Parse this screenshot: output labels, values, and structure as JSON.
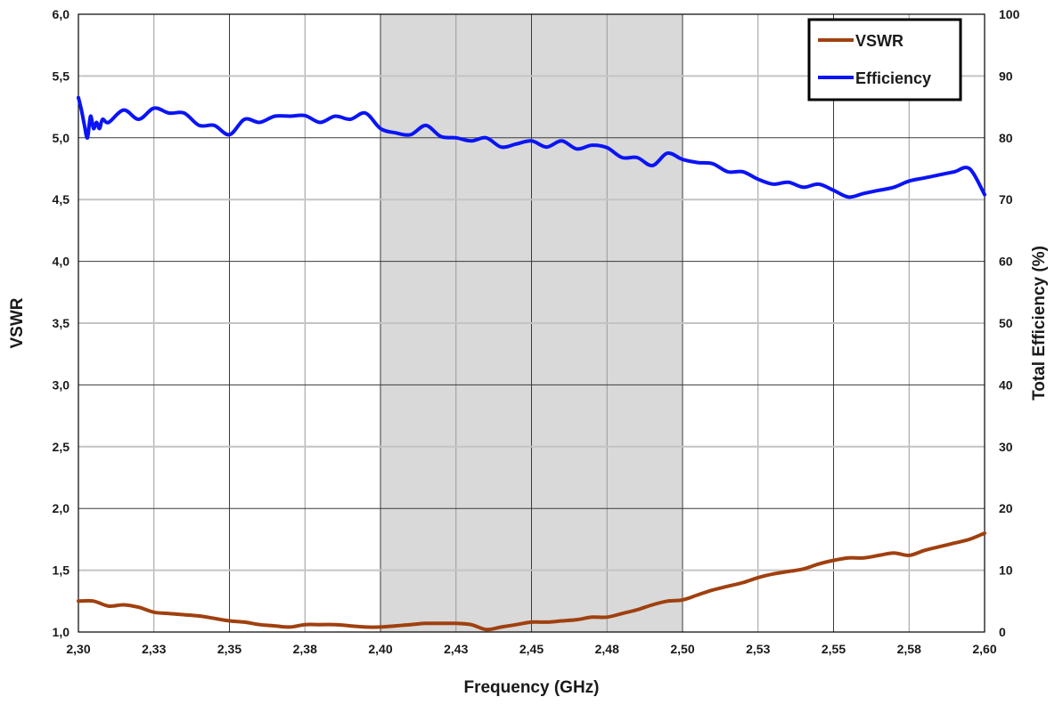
{
  "chart_data": {
    "type": "line",
    "title": "",
    "xlabel": "Frequency (GHz)",
    "ylabel": "VSWR",
    "y2label": "Total Efficiency (%)",
    "xlim": [
      2.3,
      2.6
    ],
    "ylim": [
      1.0,
      6.0
    ],
    "y2lim": [
      0,
      100
    ],
    "x_ticks": [
      2.3,
      2.325,
      2.35,
      2.375,
      2.4,
      2.425,
      2.45,
      2.475,
      2.5,
      2.525,
      2.55,
      2.575,
      2.6
    ],
    "x_tick_labels": [
      "2,30",
      "2,33",
      "2,35",
      "2,38",
      "2,40",
      "2,43",
      "2,45",
      "2,48",
      "2,50",
      "2,53",
      "2,55",
      "2,58",
      "2,60"
    ],
    "y_ticks": [
      1.0,
      1.5,
      2.0,
      2.5,
      3.0,
      3.5,
      4.0,
      4.5,
      5.0,
      5.5,
      6.0
    ],
    "y_tick_labels": [
      "1,0",
      "1,5",
      "2,0",
      "2,5",
      "3,0",
      "3,5",
      "4,0",
      "4,5",
      "5,0",
      "5,5",
      "6,0"
    ],
    "y2_ticks": [
      0,
      10,
      20,
      30,
      40,
      50,
      60,
      70,
      80,
      90,
      100
    ],
    "y2_tick_labels": [
      "0",
      "10",
      "20",
      "30",
      "40",
      "50",
      "60",
      "70",
      "80",
      "90",
      "100"
    ],
    "grid": true,
    "shaded_band": {
      "x_start": 2.4,
      "x_end": 2.5,
      "color": "#d9d9d9"
    },
    "legend": {
      "position": "top-right",
      "entries": [
        "VSWR",
        "Efficiency"
      ]
    },
    "series": [
      {
        "name": "VSWR",
        "axis": "left",
        "color": "#a0400f",
        "x": [
          2.3,
          2.305,
          2.31,
          2.315,
          2.32,
          2.325,
          2.33,
          2.335,
          2.34,
          2.345,
          2.35,
          2.355,
          2.36,
          2.365,
          2.37,
          2.375,
          2.38,
          2.385,
          2.39,
          2.395,
          2.4,
          2.405,
          2.41,
          2.415,
          2.42,
          2.425,
          2.43,
          2.435,
          2.44,
          2.445,
          2.45,
          2.455,
          2.46,
          2.465,
          2.47,
          2.475,
          2.48,
          2.485,
          2.49,
          2.495,
          2.5,
          2.505,
          2.51,
          2.515,
          2.52,
          2.525,
          2.53,
          2.535,
          2.54,
          2.545,
          2.55,
          2.555,
          2.56,
          2.565,
          2.57,
          2.575,
          2.58,
          2.585,
          2.59,
          2.595,
          2.6
        ],
        "values": [
          1.25,
          1.25,
          1.21,
          1.22,
          1.2,
          1.16,
          1.15,
          1.14,
          1.13,
          1.11,
          1.09,
          1.08,
          1.06,
          1.05,
          1.04,
          1.06,
          1.06,
          1.06,
          1.05,
          1.04,
          1.04,
          1.05,
          1.06,
          1.07,
          1.07,
          1.07,
          1.06,
          1.02,
          1.04,
          1.06,
          1.08,
          1.08,
          1.09,
          1.1,
          1.12,
          1.12,
          1.15,
          1.18,
          1.22,
          1.25,
          1.26,
          1.3,
          1.34,
          1.37,
          1.4,
          1.44,
          1.47,
          1.49,
          1.51,
          1.55,
          1.58,
          1.6,
          1.6,
          1.62,
          1.64,
          1.62,
          1.66,
          1.69,
          1.72,
          1.75,
          1.8
        ]
      },
      {
        "name": "Efficiency",
        "axis": "right",
        "color": "#0a14f5",
        "x": [
          2.3,
          2.301,
          2.302,
          2.303,
          2.304,
          2.305,
          2.306,
          2.307,
          2.308,
          2.31,
          2.315,
          2.32,
          2.325,
          2.33,
          2.335,
          2.34,
          2.345,
          2.35,
          2.355,
          2.36,
          2.365,
          2.37,
          2.375,
          2.38,
          2.385,
          2.39,
          2.395,
          2.4,
          2.405,
          2.41,
          2.415,
          2.42,
          2.425,
          2.43,
          2.435,
          2.44,
          2.445,
          2.45,
          2.455,
          2.46,
          2.465,
          2.47,
          2.475,
          2.48,
          2.485,
          2.49,
          2.495,
          2.5,
          2.505,
          2.51,
          2.515,
          2.52,
          2.525,
          2.53,
          2.535,
          2.54,
          2.545,
          2.55,
          2.555,
          2.56,
          2.565,
          2.57,
          2.575,
          2.58,
          2.585,
          2.59,
          2.595,
          2.6
        ],
        "values": [
          86.5,
          84.5,
          82.0,
          80.0,
          83.5,
          81.5,
          82.5,
          81.5,
          83.0,
          82.5,
          84.5,
          83.0,
          84.8,
          84.0,
          84.0,
          82.0,
          82.0,
          80.5,
          83.0,
          82.5,
          83.5,
          83.5,
          83.6,
          82.5,
          83.5,
          83.0,
          84.0,
          81.5,
          80.8,
          80.5,
          82.0,
          80.2,
          80.0,
          79.5,
          80.0,
          78.5,
          79.0,
          79.5,
          78.5,
          79.5,
          78.2,
          78.8,
          78.4,
          76.8,
          76.8,
          75.5,
          77.5,
          76.5,
          76.0,
          75.8,
          74.5,
          74.5,
          73.3,
          72.5,
          72.8,
          72.0,
          72.5,
          71.5,
          70.4,
          71.0,
          71.5,
          72.0,
          73.0,
          73.5,
          74.0,
          74.5,
          75.0,
          70.8
        ]
      }
    ]
  }
}
